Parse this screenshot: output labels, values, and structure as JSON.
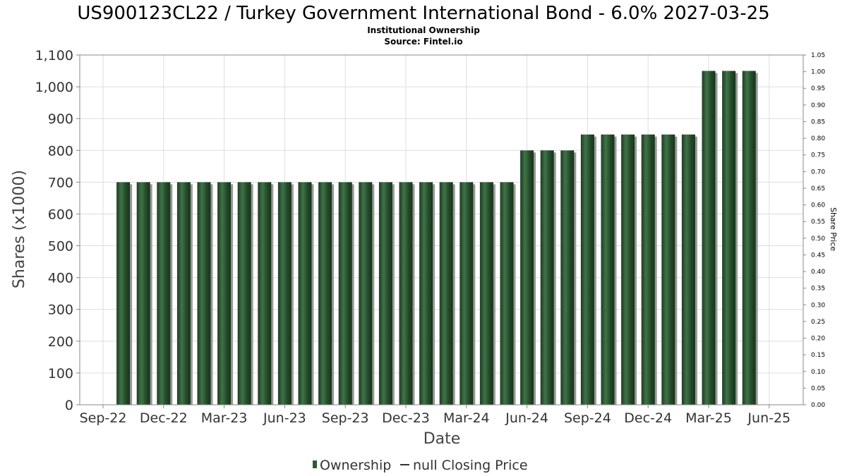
{
  "chart_data": {
    "type": "bar",
    "title": "US900123CL22 / Turkey Government International Bond - 6.0% 2027-03-25",
    "subtitle": "Institutional Ownership",
    "source": "Source: Fintel.io",
    "xlabel": "Date",
    "ylabel": "Shares (x1000)",
    "y2label": "Share Price",
    "ylim": [
      0,
      1100
    ],
    "y2lim": [
      0,
      1.05
    ],
    "yticks": [
      "0",
      "100",
      "200",
      "300",
      "400",
      "500",
      "600",
      "700",
      "800",
      "900",
      "1,000",
      "1,100"
    ],
    "y2ticks": [
      "0.00",
      "0.05",
      "0.10",
      "0.15",
      "0.20",
      "0.25",
      "0.30",
      "0.35",
      "0.40",
      "0.45",
      "0.50",
      "0.55",
      "0.60",
      "0.65",
      "0.70",
      "0.75",
      "0.80",
      "0.85",
      "0.90",
      "0.95",
      "1.00",
      "1.05"
    ],
    "xticks": [
      "Sep-22",
      "Dec-22",
      "Mar-23",
      "Jun-23",
      "Sep-23",
      "Dec-23",
      "Mar-24",
      "Jun-24",
      "Sep-24",
      "Dec-24",
      "Mar-25",
      "Jun-25"
    ],
    "grid": true,
    "legend_position": "bottom",
    "series": [
      {
        "name": "Ownership",
        "color": "#2e5a33",
        "values": [
          700,
          700,
          700,
          700,
          700,
          700,
          700,
          700,
          700,
          700,
          700,
          700,
          700,
          700,
          700,
          700,
          700,
          700,
          700,
          700,
          800,
          800,
          800,
          850,
          850,
          850,
          850,
          850,
          850,
          1050,
          1050,
          1050
        ]
      }
    ],
    "legend": [
      {
        "label": "Ownership",
        "marker": "bar"
      },
      {
        "label": "null Closing Price",
        "marker": "line"
      }
    ]
  }
}
